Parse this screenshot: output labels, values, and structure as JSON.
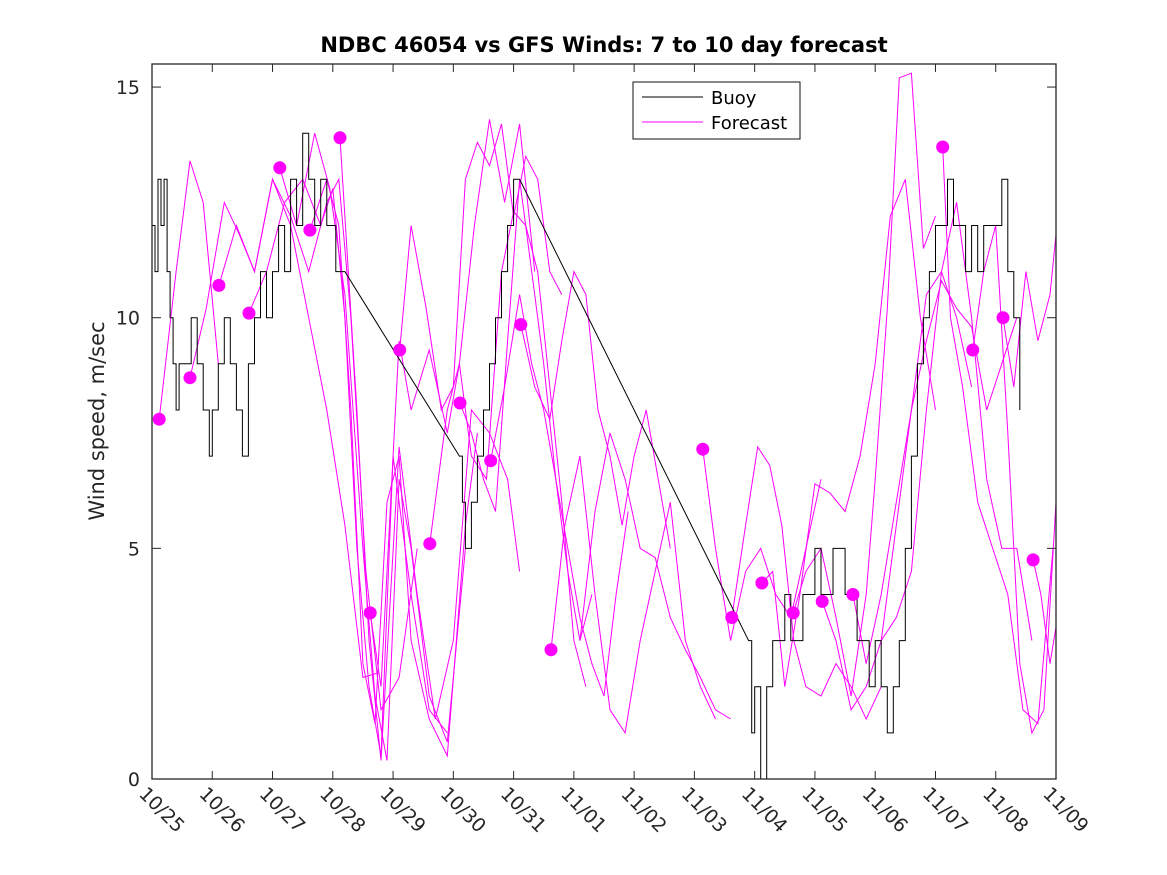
{
  "chart_data": {
    "type": "line",
    "title": "NDBC 46054 vs GFS Winds: 7 to 10 day forecast",
    "xlabel": "",
    "ylabel": "Wind speed, m/sec",
    "xlim_days": [
      0,
      15
    ],
    "ylim": [
      0,
      15.5
    ],
    "x_origin_label": "10/25",
    "x_tick_labels": [
      "10/25",
      "10/26",
      "10/27",
      "10/28",
      "10/29",
      "10/30",
      "10/31",
      "11/01",
      "11/02",
      "11/03",
      "11/04",
      "11/05",
      "11/06",
      "11/07",
      "11/08",
      "11/09"
    ],
    "y_ticks": [
      0,
      5,
      10,
      15
    ],
    "y_tick_labels": [
      "0",
      "5",
      "10",
      "15"
    ],
    "grid": false,
    "legend": {
      "placement": "top-center",
      "entries": [
        {
          "label": "Buoy",
          "color": "#000000"
        },
        {
          "label": "Forecast",
          "color": "#ff00ff"
        }
      ]
    },
    "series": [
      {
        "name": "Buoy",
        "color": "#000000",
        "style": "step",
        "x": [
          0.0,
          0.05,
          0.1,
          0.15,
          0.2,
          0.25,
          0.3,
          0.35,
          0.4,
          0.45,
          0.55,
          0.65,
          0.75,
          0.85,
          0.95,
          1.0,
          1.1,
          1.2,
          1.3,
          1.4,
          1.5,
          1.6,
          1.7,
          1.8,
          1.9,
          2.0,
          2.1,
          2.2,
          2.3,
          2.4,
          2.5,
          2.6,
          2.7,
          2.8,
          2.9,
          3.0,
          3.05,
          3.1,
          3.15,
          3.2,
          5.1,
          5.15,
          5.2,
          5.3,
          5.4,
          5.5,
          5.6,
          5.7,
          5.8,
          5.9,
          6.0,
          6.05,
          6.1,
          9.9,
          9.95,
          10.0,
          10.1,
          10.2,
          10.3,
          10.4,
          10.5,
          10.6,
          10.7,
          10.8,
          10.9,
          11.0,
          11.1,
          11.2,
          11.3,
          11.4,
          11.5,
          11.6,
          11.7,
          11.8,
          11.9,
          12.0,
          12.1,
          12.2,
          12.3,
          12.4,
          12.5,
          12.6,
          12.7,
          12.8,
          12.9,
          13.0,
          13.1,
          13.2,
          13.3,
          13.4,
          13.5,
          13.6,
          13.7,
          13.8,
          13.9,
          14.0,
          14.1,
          14.2,
          14.3,
          14.4
        ],
        "y": [
          12,
          11,
          13,
          12,
          13,
          11,
          10,
          9,
          8,
          9,
          9,
          10,
          9,
          8,
          7,
          8,
          9,
          10,
          9,
          8,
          7,
          9,
          10,
          11,
          10,
          11,
          12,
          11,
          13,
          12,
          14,
          13,
          12,
          13,
          12,
          12,
          11,
          11,
          11,
          11,
          7,
          6,
          5,
          6,
          7,
          8,
          9,
          10,
          11,
          12,
          13,
          13,
          13,
          3,
          1,
          2,
          0,
          2,
          3,
          3,
          4,
          3,
          3,
          4,
          4,
          5,
          4,
          4,
          5,
          5,
          4,
          4,
          3,
          3,
          2,
          3,
          2,
          1,
          2,
          3,
          5,
          7,
          9,
          10,
          11,
          12,
          12,
          13,
          12,
          12,
          11,
          12,
          11,
          12,
          12,
          12,
          13,
          11,
          10,
          8
        ]
      }
    ],
    "forecast_series": [
      {
        "name": "Forecast 1",
        "x": [
          0.12,
          0.4,
          0.63,
          0.85,
          1.1
        ],
        "y": [
          7.8,
          11.0,
          13.4,
          12.5,
          9.0
        ]
      },
      {
        "name": "Forecast 2",
        "x": [
          0.63,
          0.9,
          1.2,
          1.45,
          1.7,
          2.0,
          2.3,
          2.6,
          2.9,
          3.2,
          3.5,
          3.75
        ],
        "y": [
          8.7,
          10.2,
          12.5,
          11.8,
          11.0,
          13.0,
          12.0,
          10.0,
          8.0,
          5.5,
          2.2,
          2.3
        ]
      },
      {
        "name": "Forecast 3",
        "x": [
          1.11,
          1.4,
          1.7,
          2.0,
          2.3,
          2.6,
          2.9,
          3.1,
          3.3,
          3.55,
          3.8,
          4.1,
          4.4
        ],
        "y": [
          10.7,
          12.0,
          11.0,
          13.0,
          12.2,
          11.0,
          12.5,
          13.0,
          10.0,
          4.5,
          1.5,
          2.2,
          5.0
        ]
      },
      {
        "name": "Forecast 4",
        "x": [
          1.61,
          1.9,
          2.2,
          2.5,
          2.8,
          3.0,
          3.2,
          3.4,
          3.6,
          3.8,
          4.0,
          4.3,
          4.6,
          4.9
        ],
        "y": [
          10.1,
          11.0,
          12.5,
          13.0,
          12.0,
          12.8,
          10.0,
          5.0,
          2.0,
          0.5,
          7.0,
          4.0,
          1.5,
          1.0
        ]
      },
      {
        "name": "Forecast 5",
        "x": [
          2.12,
          2.4,
          2.7,
          2.95,
          3.2,
          3.5,
          3.7,
          3.9,
          4.1,
          4.3,
          4.6,
          4.9,
          5.2
        ],
        "y": [
          13.25,
          12.0,
          14.0,
          12.8,
          10.5,
          5.0,
          1.8,
          0.4,
          6.5,
          5.0,
          1.8,
          0.8,
          5.0
        ]
      },
      {
        "name": "Forecast 6",
        "x": [
          2.62,
          2.9,
          3.1,
          3.3,
          3.5,
          3.7,
          3.9,
          4.1,
          4.3,
          4.6,
          4.9,
          5.2,
          5.4
        ],
        "y": [
          11.9,
          13.0,
          12.0,
          8.0,
          2.5,
          1.2,
          6.0,
          7.0,
          3.0,
          1.3,
          0.5,
          5.5,
          7.5
        ]
      },
      {
        "name": "Forecast 7",
        "x": [
          3.12,
          3.4,
          3.6,
          3.8,
          4.1,
          4.4,
          4.7,
          5.0,
          5.3,
          5.6,
          5.9,
          6.1
        ],
        "y": [
          13.9,
          8.0,
          3.0,
          0.4,
          7.2,
          4.0,
          1.3,
          3.0,
          8.0,
          7.5,
          6.5,
          4.5
        ]
      },
      {
        "name": "Forecast 8",
        "x": [
          3.62,
          3.8,
          4.1,
          4.3,
          4.6,
          4.9,
          5.1,
          5.35,
          5.6,
          5.85,
          6.1,
          6.35
        ],
        "y": [
          3.6,
          2.0,
          9.5,
          8.0,
          9.3,
          7.5,
          9.0,
          12.0,
          14.3,
          12.5,
          14.2,
          11.0
        ]
      },
      {
        "name": "Forecast 9",
        "x": [
          4.11,
          4.3,
          4.55,
          4.8,
          5.0,
          5.2,
          5.4,
          5.6,
          5.8,
          6.0,
          6.2,
          6.4,
          6.6,
          6.8
        ],
        "y": [
          9.3,
          12.0,
          10.2,
          8.0,
          8.5,
          13.0,
          13.8,
          13.3,
          14.2,
          12.2,
          13.5,
          13.0,
          11.0,
          10.5
        ]
      },
      {
        "name": "Forecast 10",
        "x": [
          4.61,
          4.9,
          5.1,
          5.3,
          5.55,
          5.8,
          6.0,
          6.2,
          6.4,
          6.6,
          6.8,
          7.0,
          7.2
        ],
        "y": [
          5.1,
          8.0,
          9.0,
          7.0,
          6.5,
          11.0,
          12.3,
          12.0,
          11.0,
          8.5,
          6.0,
          3.0,
          2.0
        ]
      },
      {
        "name": "Forecast 11",
        "x": [
          5.11,
          5.3,
          5.5,
          5.7,
          5.9,
          6.1,
          6.3,
          6.5,
          6.7,
          6.9,
          7.1,
          7.3
        ],
        "y": [
          8.15,
          7.5,
          6.5,
          5.8,
          9.5,
          13.0,
          11.0,
          9.0,
          6.5,
          4.5,
          3.0,
          4.0
        ]
      },
      {
        "name": "Forecast 12",
        "x": [
          5.62,
          5.85,
          6.1,
          6.3,
          6.5,
          6.7,
          6.9,
          7.1,
          7.3,
          7.5,
          7.7,
          7.9
        ],
        "y": [
          6.9,
          8.5,
          10.5,
          9.0,
          8.0,
          6.5,
          5.0,
          3.5,
          2.5,
          1.8,
          4.0,
          5.8
        ]
      },
      {
        "name": "Forecast 13",
        "x": [
          6.12,
          6.35,
          6.6,
          6.8,
          7.0,
          7.2,
          7.4,
          7.6,
          7.8,
          8.0,
          8.2,
          8.4,
          8.6
        ],
        "y": [
          9.85,
          8.5,
          7.8,
          9.5,
          11.0,
          10.5,
          8.0,
          7.0,
          5.5,
          7.0,
          8.0,
          6.5,
          5.0
        ]
      },
      {
        "name": "Forecast 14",
        "x": [
          6.62,
          6.85,
          7.1,
          7.35,
          7.6,
          7.85,
          8.1,
          8.35,
          8.6,
          8.85,
          9.1,
          9.35
        ],
        "y": [
          2.8,
          5.5,
          7.0,
          4.0,
          1.5,
          1.0,
          3.0,
          4.5,
          6.0,
          3.0,
          2.0,
          1.3
        ]
      },
      {
        "name": "Forecast 15",
        "x": [
          7.1,
          7.35,
          7.6,
          7.85,
          8.1,
          8.35,
          8.6,
          8.85,
          9.1,
          9.35,
          9.6
        ],
        "y": [
          3.0,
          5.8,
          7.5,
          6.5,
          5.0,
          4.8,
          3.5,
          2.8,
          2.2,
          1.5,
          1.3
        ]
      },
      {
        "name": "Forecast 16",
        "x": [
          9.14,
          9.35,
          9.6,
          9.85,
          10.1,
          10.35,
          10.6,
          10.85,
          11.1
        ],
        "y": [
          7.15,
          5.0,
          3.0,
          4.5,
          5.0,
          4.0,
          3.5,
          5.0,
          6.5
        ]
      },
      {
        "name": "Forecast 17",
        "x": [
          9.62,
          9.85,
          10.05,
          10.25,
          10.45,
          10.65,
          10.85,
          11.1,
          11.35,
          11.6,
          11.85,
          12.1
        ],
        "y": [
          3.5,
          5.5,
          7.2,
          6.8,
          5.5,
          3.0,
          2.0,
          1.8,
          2.5,
          2.0,
          1.3,
          2.0
        ]
      },
      {
        "name": "Forecast 18",
        "x": [
          10.12,
          10.3,
          10.5,
          10.75,
          11.0,
          11.25,
          11.5,
          11.75,
          12.0,
          12.25,
          12.5,
          12.75,
          13.0
        ],
        "y": [
          4.25,
          4.5,
          2.0,
          4.0,
          6.4,
          6.2,
          5.8,
          7.0,
          9.0,
          12.2,
          13.0,
          10.0,
          8.0
        ]
      },
      {
        "name": "Forecast 19",
        "x": [
          10.64,
          10.85,
          11.1,
          11.35,
          11.6,
          11.85,
          12.0,
          12.2,
          12.4,
          12.6,
          12.8,
          13.0
        ],
        "y": [
          3.6,
          4.5,
          5.0,
          3.5,
          1.8,
          4.0,
          6.5,
          10.2,
          15.2,
          15.3,
          11.5,
          12.2
        ]
      },
      {
        "name": "Forecast 20",
        "x": [
          11.12,
          11.35,
          11.6,
          11.85,
          12.1,
          12.35,
          12.6,
          12.85,
          13.1,
          13.35,
          13.6
        ],
        "y": [
          3.85,
          3.0,
          1.5,
          2.0,
          3.0,
          5.5,
          8.0,
          10.5,
          11.0,
          10.0,
          8.5
        ]
      },
      {
        "name": "Forecast 21",
        "x": [
          11.63,
          11.85,
          12.1,
          12.35,
          12.6,
          12.85,
          13.1,
          13.35,
          13.6,
          13.85,
          14.1,
          14.35
        ],
        "y": [
          4.0,
          2.5,
          4.0,
          6.0,
          8.0,
          9.5,
          10.8,
          10.2,
          9.8,
          8.0,
          9.0,
          10.0
        ]
      },
      {
        "name": "Forecast 22",
        "x": [
          12.1,
          12.35,
          12.6,
          12.85,
          13.1,
          13.35,
          13.6,
          13.85,
          14.1,
          14.35,
          14.6
        ],
        "y": [
          3.0,
          3.5,
          4.5,
          8.0,
          11.0,
          12.5,
          10.0,
          6.5,
          5.0,
          5.0,
          3.0
        ]
      },
      {
        "name": "Forecast 23",
        "x": [
          13.12,
          13.25,
          13.45,
          13.7,
          13.95,
          14.2,
          14.45,
          14.7,
          14.95
        ],
        "y": [
          13.7,
          10.0,
          8.5,
          6.0,
          5.0,
          4.0,
          1.5,
          1.2,
          5.0
        ]
      },
      {
        "name": "Forecast 24",
        "x": [
          13.62,
          13.8,
          14.0,
          14.2,
          14.4,
          14.6,
          14.8,
          15.0
        ],
        "y": [
          9.3,
          11.0,
          12.0,
          7.5,
          2.5,
          1.0,
          1.5,
          6.0
        ]
      },
      {
        "name": "Forecast 25",
        "x": [
          14.12,
          14.3,
          14.5,
          14.7,
          14.9,
          15.0
        ],
        "y": [
          10.0,
          8.5,
          11.0,
          9.5,
          10.5,
          11.8
        ]
      },
      {
        "name": "Forecast 26",
        "x": [
          14.62,
          14.75,
          14.9,
          15.0
        ],
        "y": [
          4.75,
          4.0,
          2.5,
          3.3
        ]
      }
    ],
    "forecast_color": "#ff00ff",
    "forecast_start_markers": {
      "x": [
        0.12,
        0.63,
        1.11,
        1.61,
        2.12,
        2.62,
        3.12,
        3.62,
        4.11,
        4.61,
        5.11,
        5.62,
        6.12,
        6.62,
        9.14,
        9.62,
        10.12,
        10.64,
        11.12,
        11.63,
        13.12,
        13.62,
        14.12,
        14.62
      ],
      "y": [
        7.8,
        8.7,
        10.7,
        10.1,
        13.25,
        11.9,
        13.9,
        3.6,
        9.3,
        5.1,
        8.15,
        6.9,
        9.85,
        2.8,
        7.15,
        3.5,
        4.25,
        3.6,
        3.85,
        4.0,
        13.7,
        9.3,
        10.0,
        4.75
      ]
    }
  }
}
